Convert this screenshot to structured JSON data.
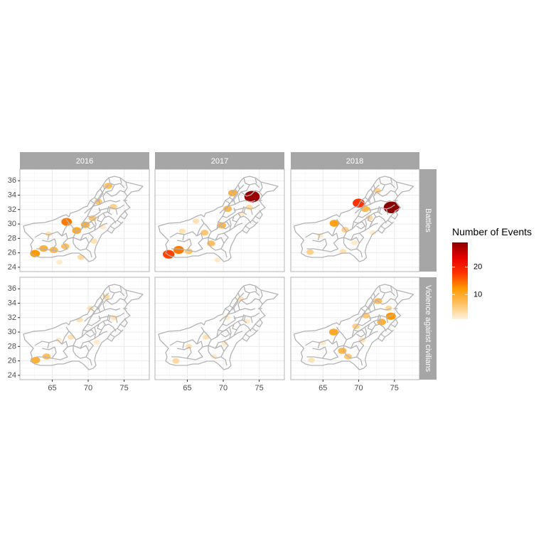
{
  "chart_data": {
    "type": "choropleth",
    "columns": [
      "2016",
      "2017",
      "2018"
    ],
    "rows": [
      "Battles",
      "Violence against civilians"
    ],
    "x_ticks": [
      "65",
      "70",
      "75"
    ],
    "y_ticks": [
      "36",
      "34",
      "32",
      "30",
      "28",
      "26",
      "24"
    ],
    "x_tick_values": [
      65,
      70,
      75
    ],
    "y_tick_values": [
      36,
      34,
      32,
      30,
      28,
      26,
      24
    ],
    "xlim": [
      60.5,
      78.5
    ],
    "ylim": [
      23.4,
      37.6
    ],
    "legend": {
      "title": "Number of Events",
      "ticks": [
        "10",
        "20"
      ],
      "tick_values": [
        10,
        20
      ],
      "range": [
        1,
        29
      ],
      "colors": [
        "#fff3e0",
        "#ffc266",
        "#ff9900",
        "#ff3300",
        "#e60000",
        "#8b0000"
      ]
    },
    "highlights": [
      {
        "panel": 0,
        "regions": [
          {
            "lon": 62.6,
            "lat": 25.9,
            "value": 12
          },
          {
            "lon": 63.8,
            "lat": 26.6,
            "value": 9
          },
          {
            "lon": 65.2,
            "lat": 26.4,
            "value": 8
          },
          {
            "lon": 66.8,
            "lat": 26.9,
            "value": 7
          },
          {
            "lon": 67.0,
            "lat": 30.3,
            "value": 14
          },
          {
            "lon": 68.4,
            "lat": 29.1,
            "value": 10
          },
          {
            "lon": 69.6,
            "lat": 29.9,
            "value": 9
          },
          {
            "lon": 70.6,
            "lat": 30.8,
            "value": 6
          },
          {
            "lon": 71.4,
            "lat": 33.1,
            "value": 6
          },
          {
            "lon": 72.8,
            "lat": 35.3,
            "value": 7
          },
          {
            "lon": 73.5,
            "lat": 32.4,
            "value": 5
          },
          {
            "lon": 69.0,
            "lat": 25.4,
            "value": 4
          },
          {
            "lon": 64.5,
            "lat": 28.6,
            "value": 3
          },
          {
            "lon": 66.0,
            "lat": 24.7,
            "value": 2
          },
          {
            "lon": 70.8,
            "lat": 27.6,
            "value": 3
          },
          {
            "lon": 72.0,
            "lat": 29.6,
            "value": 2
          }
        ]
      },
      {
        "panel": 1,
        "regions": [
          {
            "lon": 62.4,
            "lat": 25.8,
            "value": 17
          },
          {
            "lon": 63.8,
            "lat": 26.4,
            "value": 14
          },
          {
            "lon": 65.2,
            "lat": 26.2,
            "value": 6
          },
          {
            "lon": 67.4,
            "lat": 28.8,
            "value": 6
          },
          {
            "lon": 68.3,
            "lat": 27.3,
            "value": 7
          },
          {
            "lon": 69.8,
            "lat": 29.8,
            "value": 8
          },
          {
            "lon": 70.6,
            "lat": 32.1,
            "value": 8
          },
          {
            "lon": 71.3,
            "lat": 34.3,
            "value": 9
          },
          {
            "lon": 74.0,
            "lat": 33.8,
            "value": 28
          },
          {
            "lon": 64.3,
            "lat": 29.0,
            "value": 3
          },
          {
            "lon": 66.2,
            "lat": 30.4,
            "value": 3
          },
          {
            "lon": 72.5,
            "lat": 31.4,
            "value": 2
          },
          {
            "lon": 73.6,
            "lat": 32.3,
            "value": 4
          },
          {
            "lon": 69.2,
            "lat": 25.0,
            "value": 2
          }
        ]
      },
      {
        "panel": 2,
        "regions": [
          {
            "lon": 63.2,
            "lat": 26.1,
            "value": 5
          },
          {
            "lon": 66.6,
            "lat": 30.1,
            "value": 11
          },
          {
            "lon": 68.1,
            "lat": 29.2,
            "value": 5
          },
          {
            "lon": 70.0,
            "lat": 32.9,
            "value": 18
          },
          {
            "lon": 70.9,
            "lat": 32.1,
            "value": 8
          },
          {
            "lon": 71.5,
            "lat": 30.9,
            "value": 4
          },
          {
            "lon": 74.6,
            "lat": 32.3,
            "value": 29
          },
          {
            "lon": 72.6,
            "lat": 34.6,
            "value": 5
          },
          {
            "lon": 64.6,
            "lat": 28.4,
            "value": 2
          },
          {
            "lon": 67.8,
            "lat": 26.2,
            "value": 3
          },
          {
            "lon": 69.4,
            "lat": 27.4,
            "value": 2
          },
          {
            "lon": 72.0,
            "lat": 28.8,
            "value": 2
          }
        ]
      },
      {
        "panel": 3,
        "regions": [
          {
            "lon": 62.7,
            "lat": 26.1,
            "value": 9
          },
          {
            "lon": 64.2,
            "lat": 26.6,
            "value": 7
          },
          {
            "lon": 67.6,
            "lat": 29.3,
            "value": 3
          },
          {
            "lon": 68.8,
            "lat": 31.7,
            "value": 3
          },
          {
            "lon": 70.3,
            "lat": 33.3,
            "value": 3
          },
          {
            "lon": 72.5,
            "lat": 34.9,
            "value": 4
          },
          {
            "lon": 73.6,
            "lat": 32.0,
            "value": 3
          },
          {
            "lon": 71.2,
            "lat": 28.6,
            "value": 2
          },
          {
            "lon": 65.9,
            "lat": 28.9,
            "value": 2
          }
        ]
      },
      {
        "panel": 4,
        "regions": [
          {
            "lon": 63.4,
            "lat": 26.0,
            "value": 4
          },
          {
            "lon": 65.2,
            "lat": 28.0,
            "value": 3
          },
          {
            "lon": 67.6,
            "lat": 29.3,
            "value": 3
          },
          {
            "lon": 68.7,
            "lat": 26.6,
            "value": 2
          },
          {
            "lon": 70.5,
            "lat": 32.0,
            "value": 2
          },
          {
            "lon": 72.4,
            "lat": 34.6,
            "value": 3
          },
          {
            "lon": 73.3,
            "lat": 31.5,
            "value": 2
          },
          {
            "lon": 70.2,
            "lat": 28.4,
            "value": 2
          }
        ]
      },
      {
        "panel": 5,
        "regions": [
          {
            "lon": 63.4,
            "lat": 26.1,
            "value": 3
          },
          {
            "lon": 66.5,
            "lat": 30.0,
            "value": 10
          },
          {
            "lon": 67.7,
            "lat": 27.4,
            "value": 8
          },
          {
            "lon": 68.5,
            "lat": 26.6,
            "value": 6
          },
          {
            "lon": 69.6,
            "lat": 30.8,
            "value": 5
          },
          {
            "lon": 71.0,
            "lat": 32.3,
            "value": 6
          },
          {
            "lon": 73.2,
            "lat": 31.4,
            "value": 9
          },
          {
            "lon": 74.5,
            "lat": 32.2,
            "value": 12
          },
          {
            "lon": 72.7,
            "lat": 34.3,
            "value": 7
          },
          {
            "lon": 74.2,
            "lat": 33.3,
            "value": 4
          },
          {
            "lon": 70.5,
            "lat": 28.9,
            "value": 3
          },
          {
            "lon": 65.0,
            "lat": 28.5,
            "value": 2
          }
        ]
      }
    ]
  }
}
